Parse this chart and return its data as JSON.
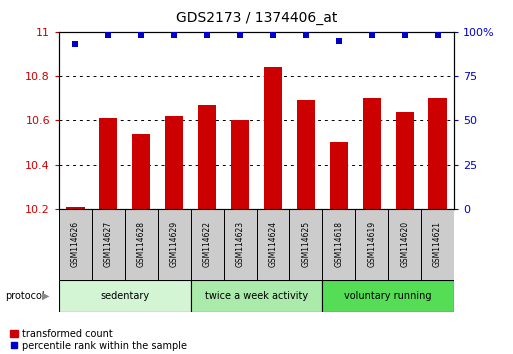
{
  "title": "GDS2173 / 1374406_at",
  "categories": [
    "GSM114626",
    "GSM114627",
    "GSM114628",
    "GSM114629",
    "GSM114622",
    "GSM114623",
    "GSM114624",
    "GSM114625",
    "GSM114618",
    "GSM114619",
    "GSM114620",
    "GSM114621"
  ],
  "bar_values": [
    10.21,
    10.61,
    10.54,
    10.62,
    10.67,
    10.6,
    10.84,
    10.69,
    10.5,
    10.7,
    10.64,
    10.7
  ],
  "dot_values_pct": [
    93,
    98,
    98,
    98,
    98,
    98,
    98,
    98,
    95,
    98,
    98,
    98
  ],
  "ylim_left": [
    10.2,
    11.0
  ],
  "ylim_right": [
    0,
    100
  ],
  "yticks_left": [
    10.2,
    10.4,
    10.6,
    10.8,
    11.0
  ],
  "ytick_labels_left": [
    "10.2",
    "10.4",
    "10.6",
    "10.8",
    "11"
  ],
  "yticks_right": [
    0,
    25,
    50,
    75,
    100
  ],
  "ytick_labels_right": [
    "0",
    "25",
    "50",
    "75",
    "100%"
  ],
  "bar_color": "#cc0000",
  "dot_color": "#0000cc",
  "bar_bottom": 10.2,
  "groups": [
    {
      "label": "sedentary",
      "start": 0,
      "end": 4,
      "color": "#d4f5d4"
    },
    {
      "label": "twice a week activity",
      "start": 4,
      "end": 8,
      "color": "#aaeaaa"
    },
    {
      "label": "voluntary running",
      "start": 8,
      "end": 12,
      "color": "#55dd55"
    }
  ],
  "protocol_label": "protocol",
  "arrow": "▶",
  "legend_bar_label": "transformed count",
  "legend_dot_label": "percentile rank within the sample",
  "label_bg_color": "#cccccc",
  "plot_bg_color": "#ffffff"
}
